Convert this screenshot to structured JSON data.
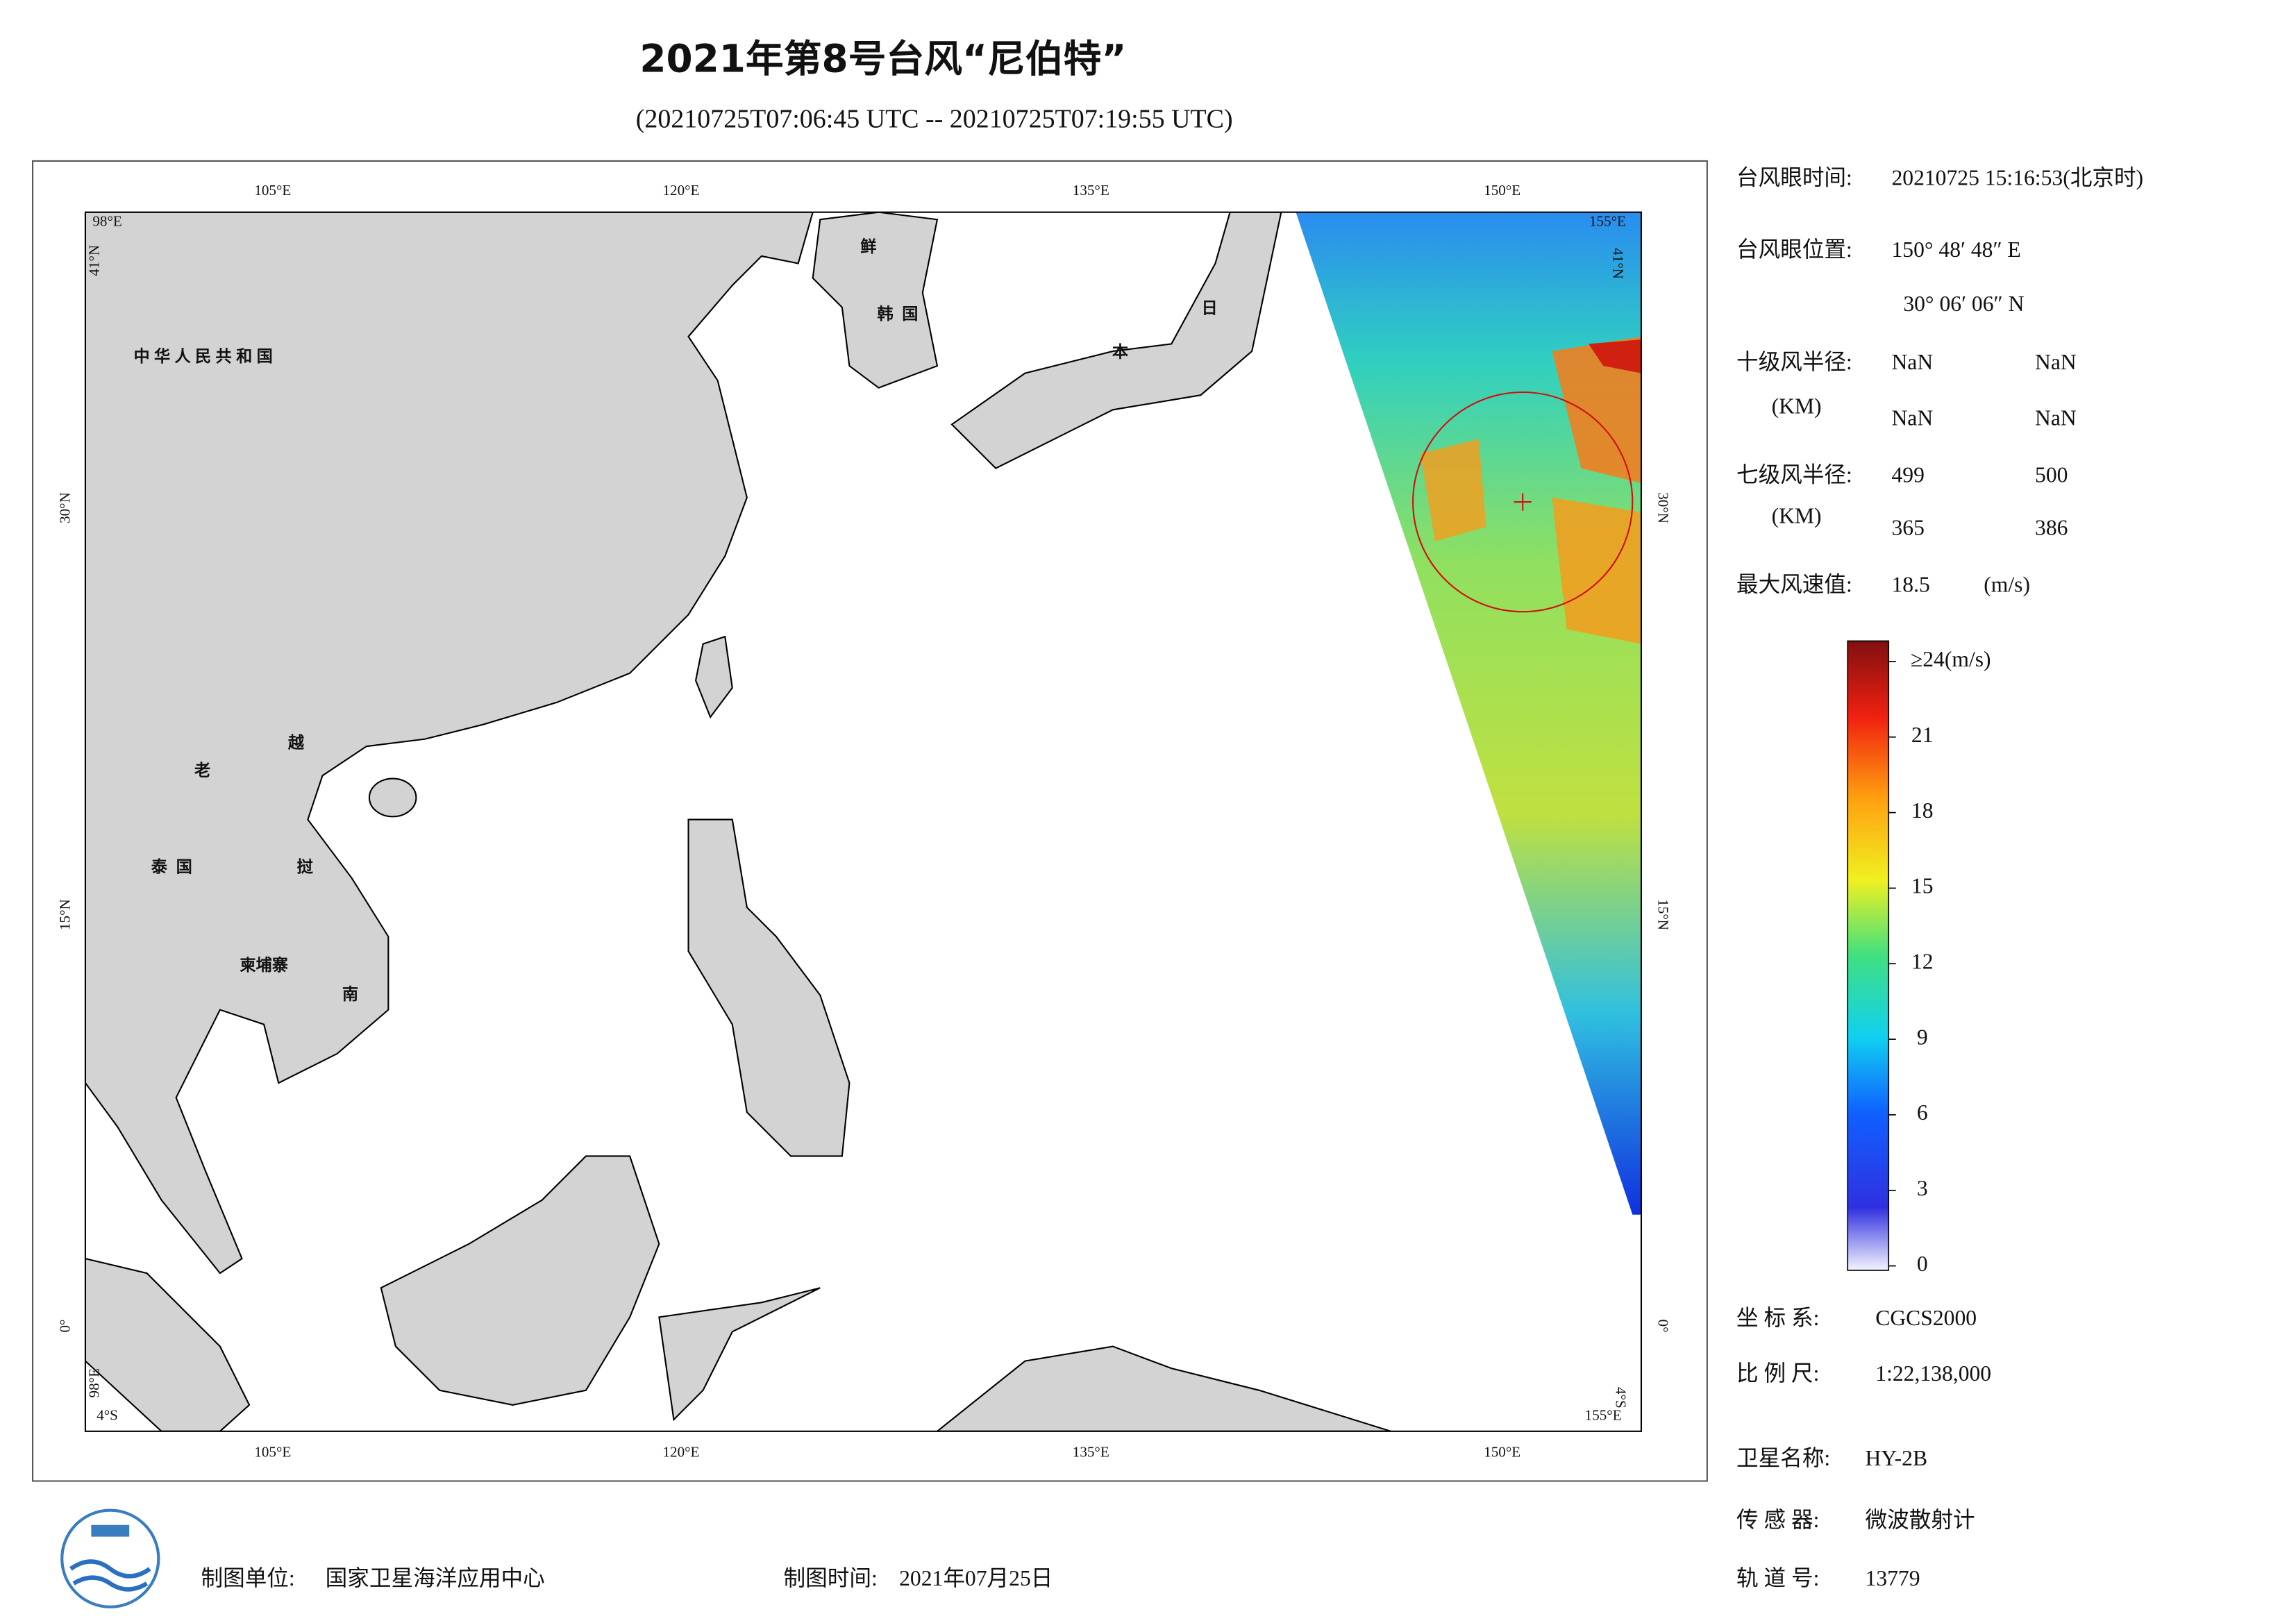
{
  "header": {
    "title": "2021年第8号台风“尼伯特”",
    "subtitle": "(20210725T07:06:45 UTC -- 20210725T07:19:55 UTC)"
  },
  "map": {
    "top_labels": [
      "105°E",
      "120°E",
      "135°E",
      "150°E"
    ],
    "bottom_labels": [
      "105°E",
      "120°E",
      "135°E",
      "150°E"
    ],
    "left_labels": [
      "30°N",
      "15°N",
      "0°"
    ],
    "right_labels": [
      "30°N",
      "15°N",
      "0°"
    ],
    "corners": {
      "tl_lon": "98°E",
      "tl_lat": "41°N",
      "tr_lon": "155°E",
      "tr_lat": "41°N",
      "bl_lon": "98°E",
      "bl_lat": "4°S",
      "br_lon": "155°E",
      "br_lat": "4°S"
    },
    "place_names": [
      "中华人民共和国",
      "鲜",
      "韩国",
      "日",
      "本",
      "老",
      "越",
      "泰国",
      "挝",
      "柬埔寨",
      "南"
    ]
  },
  "info": {
    "eye_time_label": "台风眼时间:",
    "eye_time": "20210725 15:16:53(北京时)",
    "eye_pos_label": "台风眼位置:",
    "eye_lon": "150° 48′ 48″ E",
    "eye_lat": "30° 06′ 06″ N",
    "r10_label": "十级风半径:",
    "r10_unit": "(KM)",
    "r10": [
      "NaN",
      "NaN",
      "NaN",
      "NaN"
    ],
    "r7_label": "七级风半径:",
    "r7_unit": "(KM)",
    "r7": [
      499,
      500,
      365,
      386
    ],
    "max_label": "最大风速值:",
    "max": 18.5,
    "max_unit": "(m/s)"
  },
  "colorbar": {
    "ticks": [
      0,
      3,
      6,
      9,
      12,
      15,
      18,
      21,
      {
        "value": 24,
        "label": "≥24(m/s)"
      }
    ]
  },
  "meta": {
    "crs_label": "坐 标 系:",
    "crs": "CGCS2000",
    "scale_label": "比 例 尺:",
    "scale": "1:22,138,000",
    "sat_label": "卫星名称:",
    "sat": "HY-2B",
    "sensor_label": "传 感 器:",
    "sensor": "微波散射计",
    "orbit_label": "轨 道 号:",
    "orbit": 13779
  },
  "footer": {
    "unit_label": "制图单位:",
    "unit": "国家卫星海洋应用中心",
    "time_label": "制图时间:",
    "time": "2021年07月25日"
  }
}
